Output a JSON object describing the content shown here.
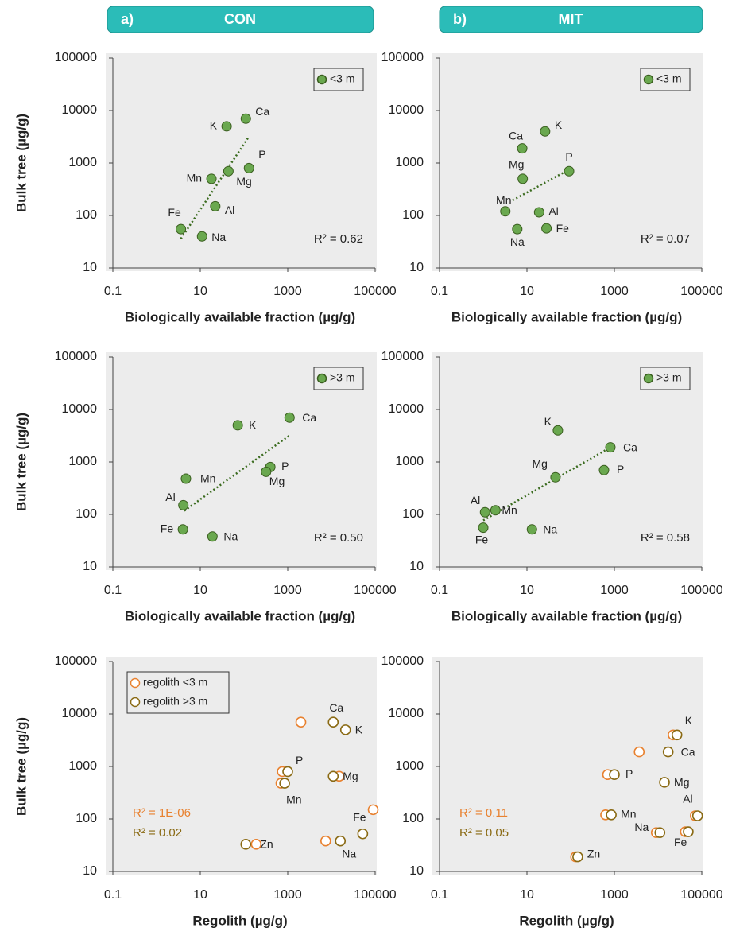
{
  "panel_headers": [
    {
      "letter": "a)",
      "title": "CON"
    },
    {
      "letter": "b)",
      "title": "MIT"
    }
  ],
  "chart_data": [
    {
      "type": "scatter",
      "ylabel": "Bulk tree (µg/g)",
      "xlabel": "Biologically available fraction (µg/g)",
      "log_x": true,
      "log_y": true,
      "xlim": [
        0.1,
        100000
      ],
      "ylim": [
        10,
        100000
      ],
      "xticks": [
        0.1,
        10,
        1000,
        100000
      ],
      "yticks": [
        10,
        100,
        1000,
        10000,
        100000
      ],
      "legend": "upper right",
      "series": [
        {
          "name": "<3 m",
          "color": "#6aa84f",
          "marker": "filled",
          "labels": [
            "K",
            "Ca",
            "P",
            "Mg",
            "Mn",
            "Al",
            "Fe",
            "Na"
          ],
          "x": [
            40,
            110,
            130,
            44,
            18,
            22,
            3.6,
            11
          ],
          "values": [
            5000,
            7000,
            800,
            700,
            500,
            150,
            55,
            40
          ]
        }
      ],
      "trendline": {
        "color": "#3a6b1e",
        "x": [
          3.6,
          130
        ],
        "values": [
          36,
          3200
        ]
      },
      "annotations": [
        {
          "text": "R² = 0.62",
          "color": "#222222"
        }
      ]
    },
    {
      "type": "scatter",
      "xlabel": "Biologically available fraction (µg/g)",
      "log_x": true,
      "log_y": true,
      "xlim": [
        0.1,
        100000
      ],
      "ylim": [
        10,
        100000
      ],
      "xticks": [
        0.1,
        10,
        1000,
        100000
      ],
      "yticks": [
        10,
        100,
        1000,
        10000,
        100000
      ],
      "legend": "upper right",
      "series": [
        {
          "name": "<3 m",
          "color": "#6aa84f",
          "marker": "filled",
          "labels": [
            "K",
            "Ca",
            "Mg",
            "P",
            "Mn",
            "Al",
            "Na",
            "Fe"
          ],
          "x": [
            26,
            7.8,
            8,
            92,
            3.2,
            19,
            6,
            28
          ],
          "values": [
            4000,
            1900,
            500,
            700,
            120,
            115,
            55,
            57
          ]
        }
      ],
      "trendline": {
        "color": "#3a6b1e",
        "x": [
          4.7,
          92
        ],
        "values": [
          195,
          750
        ]
      },
      "annotations": [
        {
          "text": "R² = 0.07",
          "color": "#222222"
        }
      ]
    },
    {
      "type": "scatter",
      "ylabel": "Bulk tree (µg/g)",
      "xlabel": "Biologically available fraction (µg/g)",
      "log_x": true,
      "log_y": true,
      "xlim": [
        0.1,
        100000
      ],
      "ylim": [
        10,
        100000
      ],
      "xticks": [
        0.1,
        10,
        1000,
        100000
      ],
      "yticks": [
        10,
        100,
        1000,
        10000,
        100000
      ],
      "legend": "upper right",
      "series": [
        {
          "name": ">3 m",
          "color": "#6aa84f",
          "marker": "filled",
          "labels": [
            "K",
            "Ca",
            "P",
            "Mg",
            "Mn",
            "Al",
            "Fe",
            "Na"
          ],
          "x": [
            72,
            1100,
            400,
            320,
            4.7,
            4.1,
            4,
            19
          ],
          "values": [
            5000,
            7000,
            800,
            650,
            480,
            150,
            52,
            38
          ]
        }
      ],
      "trendline": {
        "color": "#3a6b1e",
        "x": [
          4.3,
          1100
        ],
        "values": [
          117,
          3200
        ]
      },
      "annotations": [
        {
          "text": "R² = 0.50",
          "color": "#222222"
        }
      ]
    },
    {
      "type": "scatter",
      "xlabel": "Biologically available fraction (µg/g)",
      "log_x": true,
      "log_y": true,
      "xlim": [
        0.1,
        100000
      ],
      "ylim": [
        10,
        100000
      ],
      "xticks": [
        0.1,
        10,
        1000,
        100000
      ],
      "yticks": [
        10,
        100,
        1000,
        10000,
        100000
      ],
      "legend": "upper right",
      "series": [
        {
          "name": ">3 m",
          "color": "#6aa84f",
          "marker": "filled",
          "labels": [
            "K",
            "Ca",
            "P",
            "Mg",
            "Al",
            "Mn",
            "Fe",
            "Na"
          ],
          "x": [
            51,
            810,
            580,
            45,
            1.1,
            1.9,
            1,
            13
          ],
          "values": [
            4000,
            1900,
            700,
            510,
            110,
            120,
            56,
            52
          ]
        }
      ],
      "trendline": {
        "color": "#3a6b1e",
        "x": [
          1,
          810
        ],
        "values": [
          77,
          1900
        ]
      },
      "annotations": [
        {
          "text": "R² = 0.58",
          "color": "#222222"
        }
      ]
    },
    {
      "type": "scatter",
      "ylabel": "Bulk tree (µg/g)",
      "xlabel": "Regolith (µg/g)",
      "log_x": true,
      "log_y": true,
      "xlim": [
        0.1,
        100000
      ],
      "ylim": [
        10,
        100000
      ],
      "xticks": [
        0.1,
        10,
        1000,
        100000
      ],
      "yticks": [
        10,
        100,
        1000,
        10000,
        100000
      ],
      "legend": "upper left",
      "series": [
        {
          "name": "regolith <3 m",
          "color": "#e8812f",
          "marker": "open",
          "labels": [
            null,
            null,
            null,
            null,
            null,
            null,
            null
          ],
          "x": [
            2000,
            750,
            700,
            15000,
            90000,
            7400,
            190
          ],
          "values": [
            7000,
            800,
            480,
            650,
            150,
            38,
            33
          ]
        },
        {
          "name": "regolith >3 m",
          "color": "#8a6a14",
          "marker": "open",
          "labels": [
            "Ca",
            "K",
            "P",
            "Mn",
            "Mg",
            "Na",
            "Fe",
            "Zn"
          ],
          "x": [
            11000,
            21000,
            1000,
            850,
            11000,
            16000,
            52000,
            110
          ],
          "values": [
            7000,
            5000,
            800,
            480,
            650,
            38,
            52,
            33
          ]
        }
      ],
      "annotations": [
        {
          "text": "R² = 1E-06",
          "color": "#e8812f"
        },
        {
          "text": "R² = 0.02",
          "color": "#8a6a14"
        }
      ]
    },
    {
      "type": "scatter",
      "xlabel": "Regolith (µg/g)",
      "log_x": true,
      "log_y": true,
      "xlim": [
        0.1,
        100000
      ],
      "ylim": [
        10,
        100000
      ],
      "xticks": [
        0.1,
        10,
        1000,
        100000
      ],
      "yticks": [
        10,
        100,
        1000,
        10000,
        100000
      ],
      "series": [
        {
          "color": "#e8812f",
          "marker": "open",
          "labels": [
            null,
            null,
            null,
            null,
            null,
            null,
            null,
            null
          ],
          "x": [
            22000,
            3700,
            700,
            630,
            9100,
            42000,
            71000,
            130
          ],
          "values": [
            4000,
            1900,
            700,
            120,
            55,
            57,
            115,
            19
          ]
        },
        {
          "color": "#8a6a14",
          "marker": "open",
          "labels": [
            "K",
            "Ca",
            "P",
            "Mg",
            "Mn",
            "Na",
            "Fe",
            "Al",
            "Zn"
          ],
          "x": [
            27000,
            17000,
            1000,
            14000,
            850,
            11000,
            49000,
            80000,
            145
          ],
          "values": [
            4000,
            1900,
            700,
            500,
            120,
            55,
            57,
            115,
            19
          ]
        }
      ],
      "annotations": [
        {
          "text": "R² = 0.11",
          "color": "#e8812f"
        },
        {
          "text": "R² = 0.05",
          "color": "#8a6a14"
        }
      ]
    }
  ]
}
